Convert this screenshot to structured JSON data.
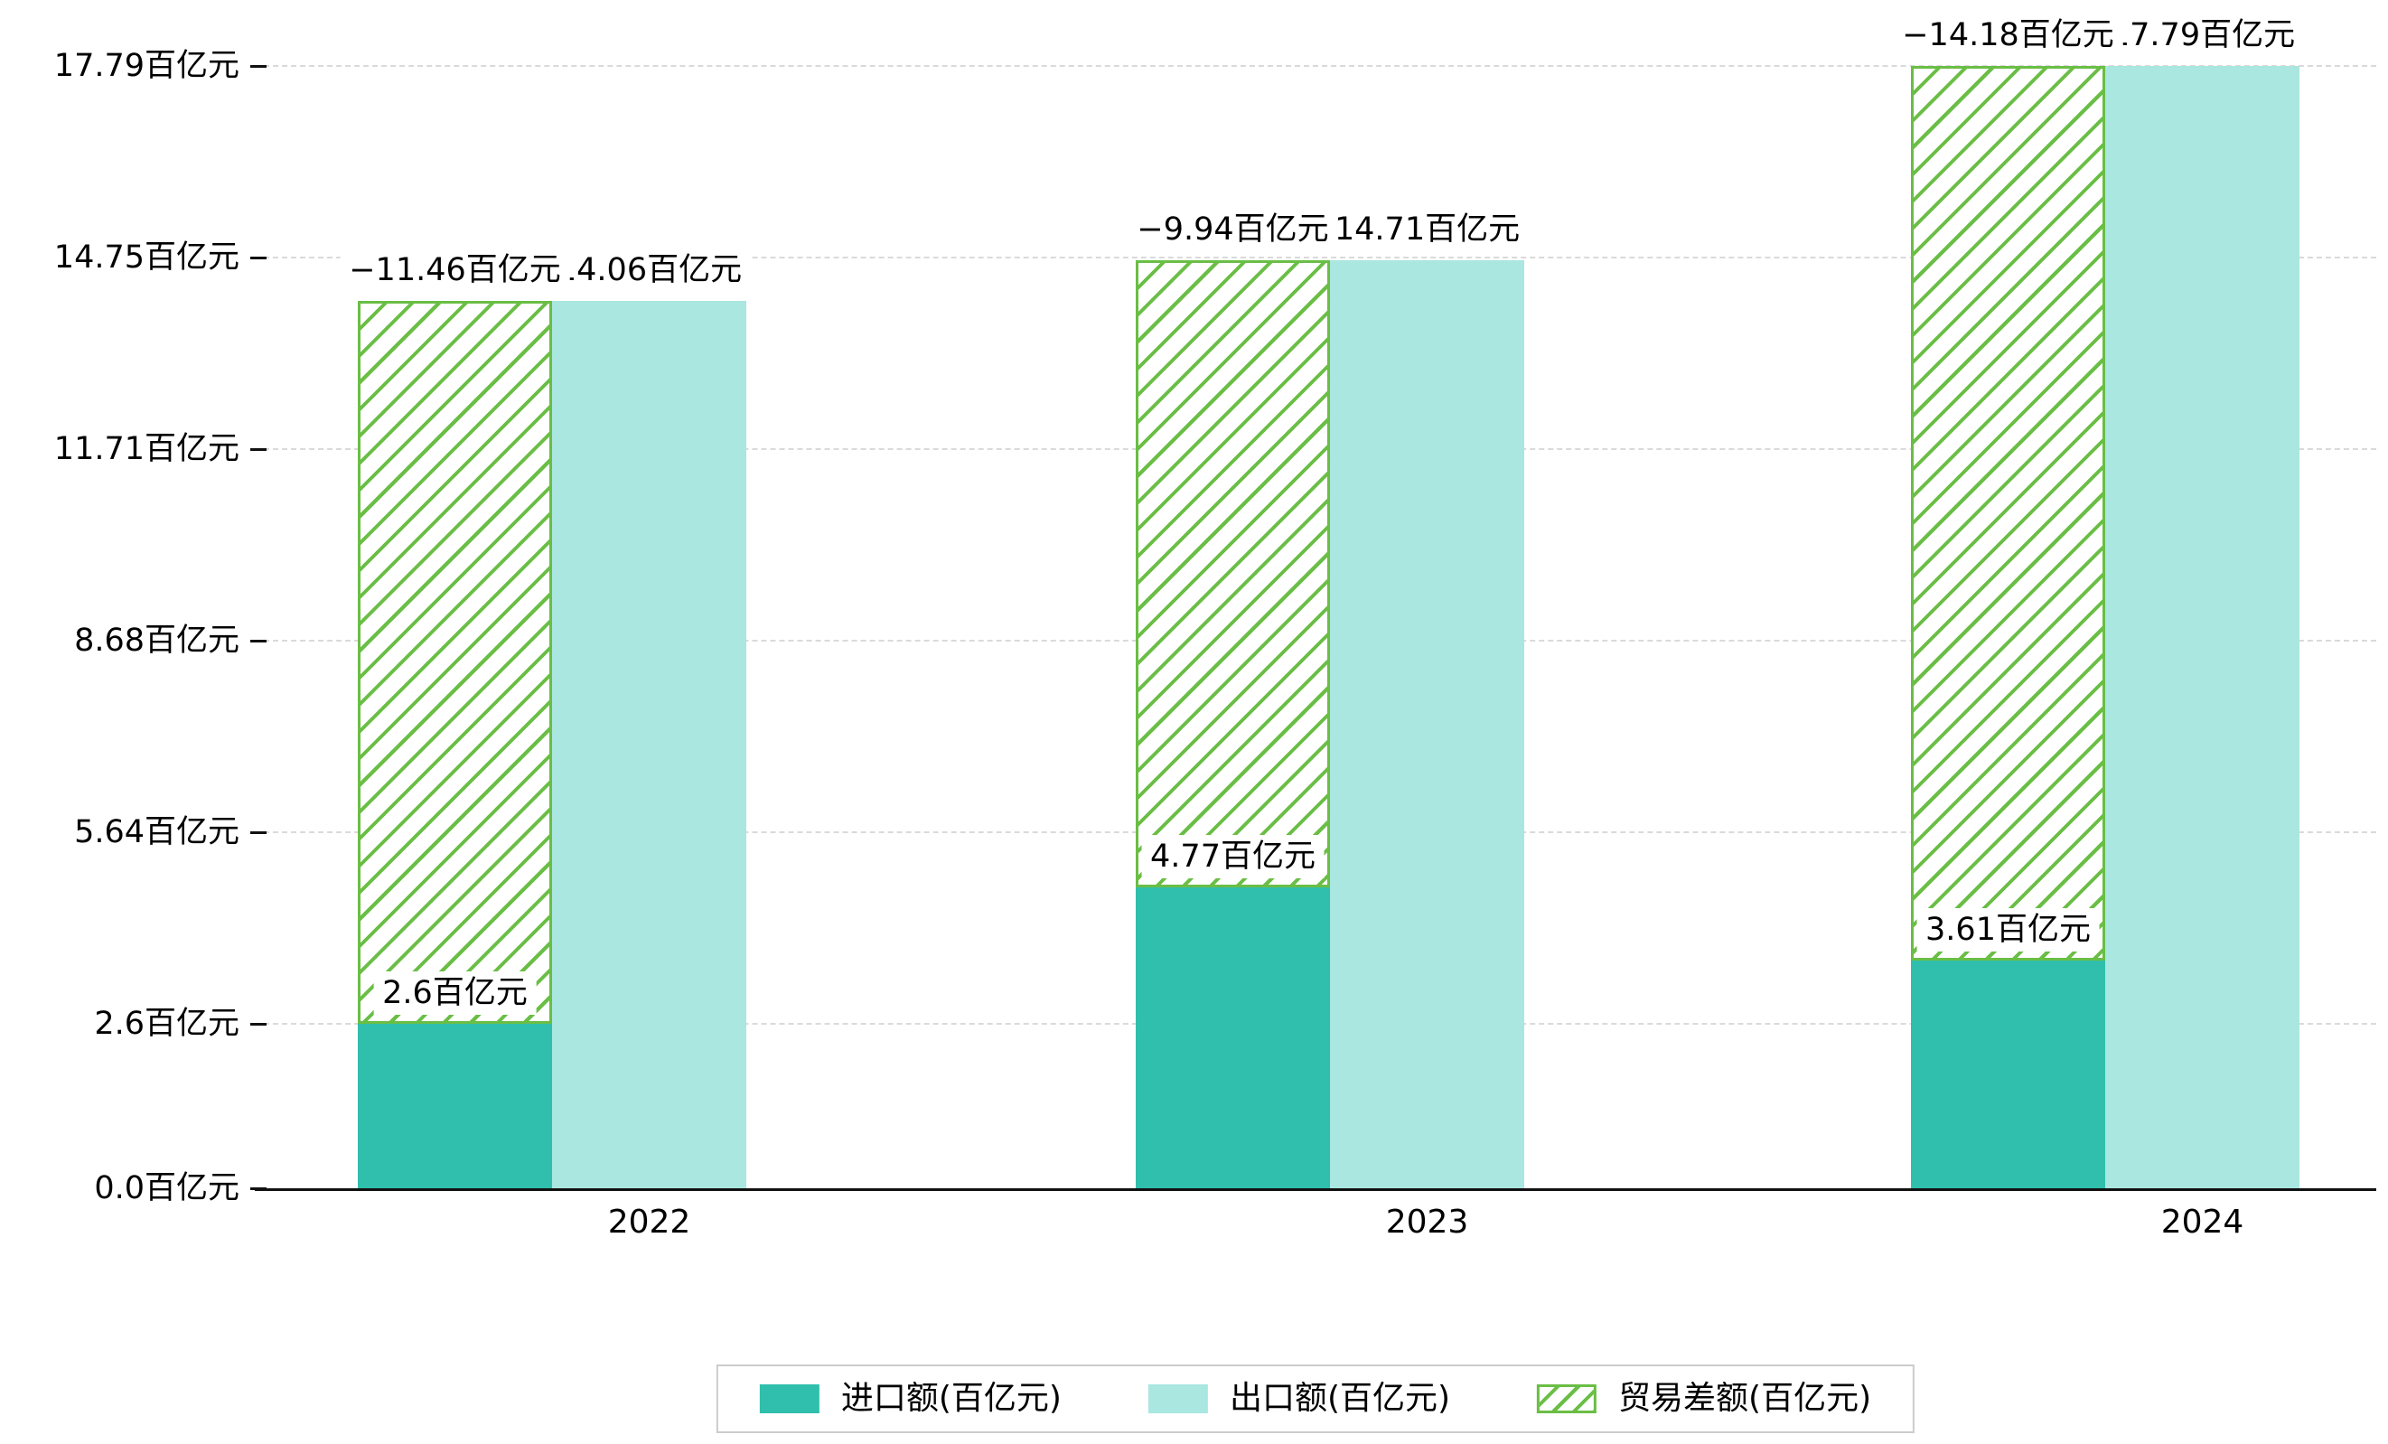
{
  "chart_data": {
    "type": "bar",
    "title": "",
    "categories": [
      "2022",
      "2023",
      "2024"
    ],
    "series": [
      {
        "name": "进口额(百亿元)",
        "role": "import",
        "values": [
          2.6,
          4.77,
          3.61
        ],
        "labels": [
          "2.6百亿元",
          "4.77百亿元",
          "3.61百亿元"
        ],
        "color": "#2fbfac",
        "pattern": "solid"
      },
      {
        "name": "出口额(百亿元)",
        "role": "export",
        "values": [
          14.06,
          14.71,
          17.79
        ],
        "labels": [
          "14.06百亿元",
          "14.71百亿元",
          "17.79百亿元"
        ],
        "color": "#a9e7e0",
        "pattern": "solid"
      },
      {
        "name": "贸易差额(百亿元)",
        "role": "balance",
        "values": [
          -11.46,
          -9.94,
          -14.18
        ],
        "labels": [
          "−11.46百亿元",
          "−9.94百亿元",
          "−14.18百亿元"
        ],
        "color": "#6abe45",
        "pattern": "hatched-diagonal",
        "render_note": "floating hatched bar spanning from import value up to export value, same x as import bar"
      }
    ],
    "y_ticks": [
      {
        "value": 0.0,
        "label": "0.0百亿元"
      },
      {
        "value": 2.6,
        "label": "2.6百亿元"
      },
      {
        "value": 5.64,
        "label": "5.64百亿元"
      },
      {
        "value": 8.68,
        "label": "8.68百亿元"
      },
      {
        "value": 11.71,
        "label": "11.71百亿元"
      },
      {
        "value": 14.75,
        "label": "14.75百亿元"
      },
      {
        "value": 17.79,
        "label": "17.79百亿元"
      }
    ],
    "ylim": [
      0,
      17.79
    ],
    "xlabel": "",
    "ylabel": "",
    "unit": "百亿元",
    "grid": "horizontal dashed",
    "legend_position": "bottom-center"
  },
  "legend": {
    "items": [
      {
        "label": "进口额(百亿元)",
        "swatch": "solid-teal"
      },
      {
        "label": "出口额(百亿元)",
        "swatch": "solid-light-cyan"
      },
      {
        "label": "贸易差额(百亿元)",
        "swatch": "green-diagonal-hatch"
      }
    ]
  },
  "colors": {
    "import": "#2fbfac",
    "export": "#a9e7e0",
    "balance": "#6abe45",
    "grid": "#dadada",
    "axis": "#111111",
    "label_background": "#ffffff",
    "text": "#000000",
    "legend_border": "#cccccc"
  }
}
